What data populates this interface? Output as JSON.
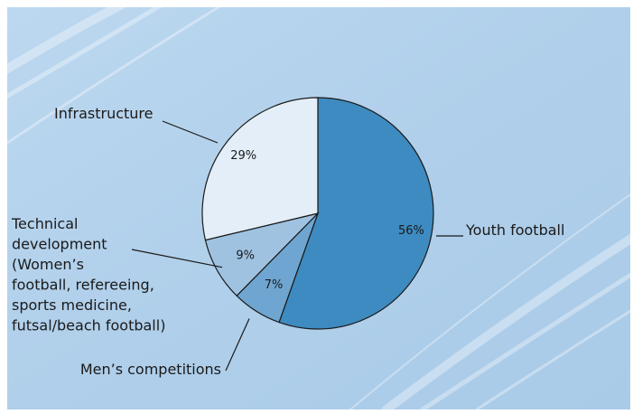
{
  "chart_data": {
    "type": "pie",
    "slices": [
      {
        "label": "Youth football",
        "value": 56,
        "display": "56%",
        "color": "#3d8bc0"
      },
      {
        "label": "Men’s competitions",
        "value": 7,
        "display": "7%",
        "color": "#6fa6d1"
      },
      {
        "label": "Technical development (Women’s football, refereeing, sports medicine, futsal/beach football)",
        "value": 9,
        "display": "9%",
        "color": "#9fc2e1"
      },
      {
        "label": "Infrastructure",
        "value": 29,
        "display": "29%",
        "color": "#e3eef8"
      }
    ],
    "label_lines": {
      "youth": [
        "Youth football"
      ],
      "mens": [
        "Men’s competitions"
      ],
      "technical": [
        "Technical",
        "development",
        "(Women’s",
        "football, refereeing,",
        "sports medicine,",
        "futsal/beach football)"
      ],
      "infra": [
        "Infrastructure"
      ]
    },
    "start_angle_deg": 0,
    "direction": "clockwise",
    "legend": "none",
    "background_color": "#b2d1ec"
  }
}
